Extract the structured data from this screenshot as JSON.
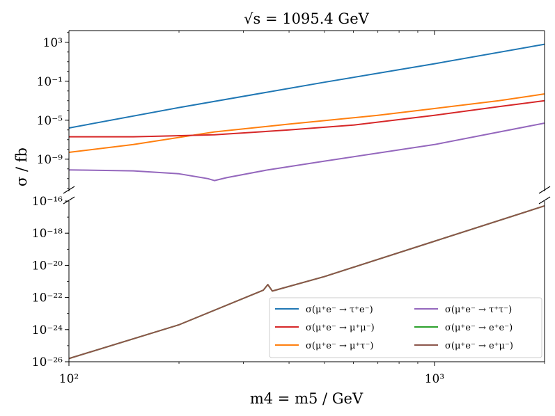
{
  "chart_data": {
    "type": "line",
    "title": "√s = 1095.4 GeV",
    "xlabel": "m4 = m5 / GeV",
    "ylabel": "σ / fb",
    "xscale": "log",
    "yscale": "log",
    "xlim": [
      100,
      2000
    ],
    "x_ticks": [
      {
        "value": 100,
        "label": "10²"
      },
      {
        "value": 1000,
        "label": "10³"
      }
    ],
    "panels": [
      {
        "name": "upper",
        "ylim_exp": [
          -12.3,
          4.2
        ],
        "y_ticks": [
          {
            "exp": 3,
            "label": "10³"
          },
          {
            "exp": -1,
            "label": "10⁻¹"
          },
          {
            "exp": -5,
            "label": "10⁻⁵"
          },
          {
            "exp": -9,
            "label": "10⁻⁹"
          }
        ]
      },
      {
        "name": "lower",
        "ylim_exp": [
          -26,
          -16
        ],
        "y_ticks": [
          {
            "exp": -16,
            "label": "10⁻¹⁶"
          },
          {
            "exp": -18,
            "label": "10⁻¹⁸"
          },
          {
            "exp": -20,
            "label": "10⁻²⁰"
          },
          {
            "exp": -22,
            "label": "10⁻²²"
          },
          {
            "exp": -24,
            "label": "10⁻²⁴"
          },
          {
            "exp": -26,
            "label": "10⁻²⁶"
          }
        ]
      }
    ],
    "series": [
      {
        "name": "σ(μ⁺e⁻ → τ⁺e⁻)",
        "color": "#1f77b4",
        "panel": "upper",
        "x": [
          100,
          200,
          500,
          1000,
          2000
        ],
        "log10_y": [
          -5.8,
          -3.7,
          -1.1,
          0.8,
          2.8
        ]
      },
      {
        "name": "σ(μ⁺e⁻ → μ⁺τ⁻)",
        "color": "#ff7f0e",
        "panel": "upper",
        "x": [
          100,
          150,
          250,
          400,
          700,
          1000,
          1500,
          2000
        ],
        "log10_y": [
          -8.3,
          -7.5,
          -6.2,
          -5.4,
          -4.5,
          -3.8,
          -3.0,
          -2.3
        ]
      },
      {
        "name": "σ(μ⁺e⁻ → e⁺e⁻)",
        "color": "#2ca02c",
        "panel": "lower",
        "x": [
          100,
          200,
          340,
          350,
          360,
          500,
          1000,
          2000
        ],
        "log10_y": [
          -25.8,
          -23.7,
          -21.55,
          -21.2,
          -21.6,
          -20.7,
          -18.5,
          -16.3
        ]
      },
      {
        "name": "σ(μ⁺e⁻ → μ⁺μ⁻)",
        "color": "#d62728",
        "panel": "upper",
        "x": [
          100,
          150,
          250,
          400,
          600,
          1000,
          1500,
          2000
        ],
        "log10_y": [
          -6.7,
          -6.7,
          -6.5,
          -6.0,
          -5.5,
          -4.5,
          -3.6,
          -3.0
        ]
      },
      {
        "name": "σ(μ⁺e⁻ → τ⁺τ⁻)",
        "color": "#9467bd",
        "panel": "upper",
        "x": [
          100,
          150,
          200,
          240,
          250,
          270,
          350,
          500,
          1000,
          2000
        ],
        "log10_y": [
          -10.1,
          -10.2,
          -10.5,
          -11.0,
          -11.2,
          -10.9,
          -10.1,
          -9.2,
          -7.5,
          -5.3
        ]
      },
      {
        "name": "σ(μ⁺e⁻ → e⁺μ⁻)",
        "color": "#8c564b",
        "panel": "lower",
        "x": [
          100,
          200,
          340,
          350,
          360,
          500,
          1000,
          2000
        ],
        "log10_y": [
          -25.8,
          -23.7,
          -21.55,
          -21.2,
          -21.6,
          -20.7,
          -18.5,
          -16.3
        ]
      }
    ],
    "legend_location": "lower-right",
    "legend_order": [
      0,
      3,
      1,
      4,
      2,
      5
    ]
  }
}
